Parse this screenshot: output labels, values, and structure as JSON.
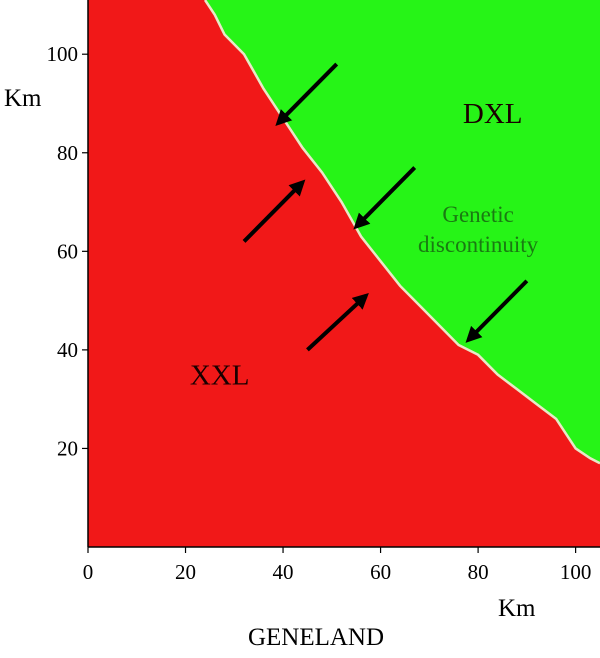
{
  "chart_data": {
    "type": "heatmap",
    "title": "GENELAND",
    "xlabel": "Km",
    "ylabel": "Km",
    "xlim": [
      0,
      105
    ],
    "ylim": [
      0,
      111
    ],
    "x_ticks": [
      0,
      20,
      40,
      60,
      80,
      100
    ],
    "y_ticks": [
      20,
      40,
      60,
      80,
      100
    ],
    "x_tick_labels": [
      "0",
      "20",
      "40",
      "60",
      "80",
      "100"
    ],
    "y_tick_labels": [
      "20",
      "40",
      "60",
      "80",
      "100"
    ],
    "regions": [
      {
        "label": "XXL",
        "color": "#f11818",
        "label_x": 27,
        "label_y": 33
      },
      {
        "label": "DXL",
        "color": "#26f417",
        "label_x": 83,
        "label_y": 86
      }
    ],
    "boundary": {
      "label_lines": [
        "Genetic",
        "discontinuity"
      ],
      "label_color": "#1a7a12",
      "label_x": 80,
      "label_y": 66,
      "points": [
        [
          24,
          111
        ],
        [
          26,
          108
        ],
        [
          28,
          104
        ],
        [
          32,
          100
        ],
        [
          36,
          93
        ],
        [
          40,
          87
        ],
        [
          44,
          81
        ],
        [
          48,
          76
        ],
        [
          52,
          70
        ],
        [
          56,
          63
        ],
        [
          60,
          58
        ],
        [
          64,
          53
        ],
        [
          68,
          49
        ],
        [
          72,
          45
        ],
        [
          76,
          41
        ],
        [
          80,
          39
        ],
        [
          84,
          35
        ],
        [
          88,
          32
        ],
        [
          92,
          29
        ],
        [
          96,
          26
        ],
        [
          100,
          20
        ],
        [
          103,
          18
        ],
        [
          105,
          17
        ]
      ]
    },
    "arrows": [
      {
        "from": [
          51,
          98
        ],
        "to": [
          39,
          86
        ]
      },
      {
        "from": [
          32,
          62
        ],
        "to": [
          44,
          74
        ]
      },
      {
        "from": [
          67,
          77
        ],
        "to": [
          55,
          65
        ]
      },
      {
        "from": [
          45,
          40
        ],
        "to": [
          57,
          51
        ]
      },
      {
        "from": [
          90,
          54
        ],
        "to": [
          78,
          42
        ]
      }
    ]
  }
}
